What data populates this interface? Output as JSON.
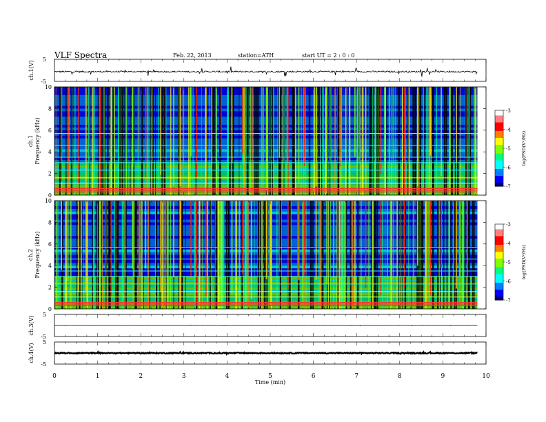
{
  "header": {
    "title": "VLF  Spectra",
    "date": "Feb. 22, 2013",
    "station": "station=ATH",
    "start": "start  UT  =   2  : 0  : 0"
  },
  "chart_data": {
    "type": "heatmap",
    "x_axis": {
      "label": "Time  (min)",
      "range": [
        0,
        10
      ],
      "ticks": [
        "0",
        "1",
        "2",
        "3",
        "4",
        "5",
        "6",
        "7",
        "8",
        "9",
        "10"
      ],
      "data_extent_max": 9.8
    },
    "panels": [
      {
        "id": "ch1_wave",
        "kind": "waveform",
        "ylabel": "ch.1(V)",
        "yrange": [
          -5,
          5
        ],
        "ticks": [
          "5",
          "-5"
        ],
        "baseline": -0.6,
        "noise": 0.35,
        "spike": 2.2
      },
      {
        "id": "ch1_spec",
        "kind": "spectrogram",
        "ylabel_top": "ch.1",
        "ylabel": "Frequency  (kHz)",
        "yrange": [
          0,
          10
        ],
        "ticks": [
          "0",
          "2",
          "4",
          "6",
          "8",
          "10"
        ]
      },
      {
        "id": "ch2_spec",
        "kind": "spectrogram",
        "ylabel_top": "ch.2",
        "ylabel": "Frequency  (kHz)",
        "yrange": [
          0,
          10
        ],
        "ticks": [
          "0",
          "2",
          "4",
          "6",
          "8",
          "10"
        ]
      },
      {
        "id": "ch3_wave",
        "kind": "waveform",
        "ylabel": "ch.3(V)",
        "yrange": [
          -5,
          5
        ],
        "ticks": [
          "5",
          "-5"
        ],
        "baseline": 0.0,
        "noise": 0.05,
        "spike": 0.15
      },
      {
        "id": "ch4_wave",
        "kind": "waveform",
        "ylabel": "ch.4(V)",
        "yrange": [
          -5,
          5
        ],
        "ticks": [
          "5",
          "-5"
        ],
        "baseline": 0.0,
        "noise": 0.25,
        "spike": 0.3
      }
    ],
    "colorbars": [
      {
        "panel": "ch1_spec",
        "label": "log(PSD(V²/Hz)",
        "range": [
          -7,
          -3
        ],
        "ticks": [
          "-3",
          "-4",
          "-5",
          "-6",
          "-7"
        ]
      },
      {
        "panel": "ch2_spec",
        "label": "log(PSD(V²/Hz)",
        "range": [
          -7,
          -3
        ],
        "ticks": [
          "-3",
          "-4",
          "-5",
          "-6",
          "-7"
        ]
      }
    ],
    "colormap": [
      "#000066",
      "#0000ff",
      "#0080ff",
      "#00ffff",
      "#00ff80",
      "#80ff00",
      "#ffff00",
      "#ff8000",
      "#ff0000",
      "#ff8080",
      "#ffffff"
    ],
    "spectrogram_features": {
      "persistent_lines_khz": [
        0.3,
        0.45,
        0.6,
        1.1,
        1.6,
        2.3,
        3.0,
        3.5,
        4.6,
        5.7
      ],
      "burst_times_min": [
        0.15,
        0.3,
        0.55,
        0.72,
        1.05,
        1.3,
        1.8,
        1.95,
        2.1,
        2.45,
        2.75,
        2.9,
        3.15,
        3.28,
        3.5,
        3.85,
        4.1,
        4.35,
        4.55,
        4.9,
        5.2,
        5.4,
        5.65,
        5.78,
        6.05,
        6.3,
        6.6,
        6.95,
        7.2,
        7.55,
        7.8,
        8.1,
        8.4,
        8.7,
        8.95,
        9.3,
        9.55
      ],
      "description": "broadband atmospherics (sferics) over 0-10 kHz with low-frequency narrowband lines"
    }
  }
}
